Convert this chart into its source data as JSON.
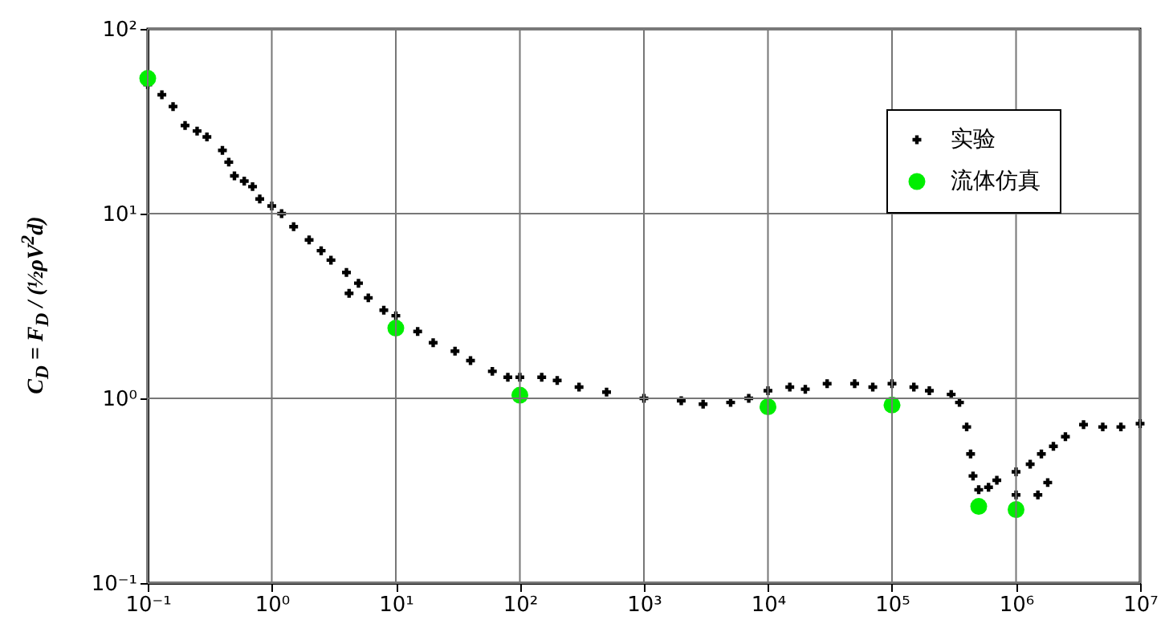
{
  "chart_data": {
    "type": "scatter",
    "ylabel": "C$_{D}$ = F$_{D}$ / (½ρV$^{2}$d)",
    "log": "xy",
    "grid": true,
    "legend": "top right",
    "xlim": [
      0.1,
      10000000
    ],
    "ylim": [
      0.1,
      100
    ],
    "xticks": [
      {
        "value": 0.1,
        "label": "10⁻¹"
      },
      {
        "value": 1,
        "label": "10⁰"
      },
      {
        "value": 10,
        "label": "10¹"
      },
      {
        "value": 100,
        "label": "10²"
      },
      {
        "value": 1000,
        "label": "10³"
      },
      {
        "value": 10000,
        "label": "10⁴"
      },
      {
        "value": 100000,
        "label": "10⁵"
      },
      {
        "value": 1000000,
        "label": "10⁶"
      },
      {
        "value": 10000000,
        "label": "10⁷"
      }
    ],
    "yticks": [
      {
        "value": 0.1,
        "label": "10⁻¹"
      },
      {
        "value": 1,
        "label": "10⁰"
      },
      {
        "value": 10,
        "label": "10¹"
      },
      {
        "value": 100,
        "label": "10²"
      }
    ],
    "series": [
      {
        "name": "实验",
        "color": "#000000",
        "marker": "cross",
        "x": [
          0.1,
          0.13,
          0.16,
          0.2,
          0.25,
          0.3,
          0.4,
          0.45,
          0.5,
          0.6,
          0.7,
          0.8,
          1,
          1.2,
          1.5,
          2,
          2.5,
          3,
          4,
          4.2,
          5,
          6,
          8,
          10,
          15,
          20,
          30,
          40,
          60,
          80,
          100,
          150,
          200,
          300,
          500,
          1000,
          2000,
          3000,
          5000,
          7000,
          10000,
          15000,
          20000,
          30000,
          50000,
          70000,
          100000,
          150000,
          200000,
          300000,
          350000,
          400000,
          430000,
          450000,
          500000,
          600000,
          700000,
          1000000,
          1300000,
          1600000,
          2000000,
          1000000,
          1500000,
          1800000,
          2500000,
          3500000,
          5000000,
          7000000,
          10000000
        ],
        "values": [
          50,
          44,
          38,
          30,
          28,
          26,
          22,
          19,
          16,
          15,
          14,
          12,
          11,
          10,
          8.5,
          7.2,
          6.3,
          5.6,
          4.8,
          3.7,
          4.2,
          3.5,
          3.0,
          2.8,
          2.3,
          2.0,
          1.8,
          1.6,
          1.4,
          1.3,
          1.3,
          1.3,
          1.25,
          1.15,
          1.08,
          1.0,
          0.97,
          0.93,
          0.95,
          1.0,
          1.1,
          1.15,
          1.12,
          1.2,
          1.2,
          1.15,
          1.2,
          1.15,
          1.1,
          1.05,
          0.95,
          0.7,
          0.5,
          0.38,
          0.32,
          0.33,
          0.36,
          0.4,
          0.44,
          0.5,
          0.55,
          0.3,
          0.3,
          0.35,
          0.62,
          0.72,
          0.7,
          0.7,
          0.73
        ]
      },
      {
        "name": "流体仿真",
        "color": "#00ee00",
        "marker": "circle",
        "x": [
          0.1,
          10,
          100,
          10000,
          100000,
          500000,
          1000000
        ],
        "values": [
          54,
          2.4,
          1.04,
          0.9,
          0.92,
          0.26,
          0.25
        ]
      }
    ]
  }
}
